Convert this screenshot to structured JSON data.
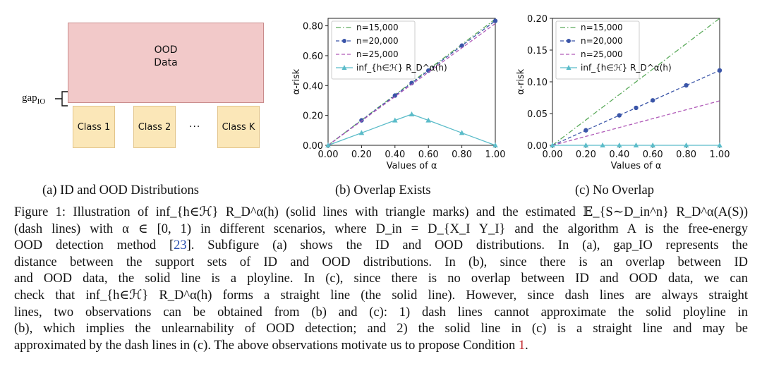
{
  "diagram": {
    "ood_line1": "OOD",
    "ood_line2": "Data",
    "gap_label": "gap",
    "gap_sub": "IO",
    "classes": [
      "Class 1",
      "Class 2",
      "Class K"
    ],
    "ellipsis": "···"
  },
  "subcaptions": [
    "(a) ID and OOD Distributions",
    "(b) Overlap Exists",
    "(c) No Overlap"
  ],
  "caption_lines": [
    "Figure 1: Illustration of inf_{h∈ℋ} R_D^α(h) (solid lines with triangle marks) and the estimated 𝔼_{S∼D_in^n} R_D^α(A(S))",
    "(dash lines) with α ∈ [0, 1) in different scenarios, where D_in = D_{X_I Y_I} and the algorithm A is the free-energy",
    "OOD detection method [23]. Subfigure (a) shows the ID and OOD distributions. In (a), gap_IO represents the",
    "distance between the support sets of ID and OOD distributions. In (b), since there is an overlap between ID",
    "and OOD data, the solid line is a ployline. In (c), since there is no overlap between ID and OOD data, we can",
    "check that inf_{h∈ℋ} R_D^α(h) forms a straight line (the solid line). However, since dash lines are always straight",
    "lines, two observations can be obtained from (b) and (c): 1) dash lines cannot approximate the solid ployline in",
    "(b), which implies the unlearnability of OOD detection; and 2) the solid line in (c) is a straight line and may be",
    "approximated by the dash lines in (c). The above observations motivate us to propose Condition 1."
  ],
  "caption_ref": "23",
  "caption_cond": "1",
  "colors": {
    "n15000": "#5cab5c",
    "n20000": "#3a55a8",
    "n25000": "#b05ab8",
    "inf": "#5bbcc9"
  },
  "chart_data": [
    {
      "type": "line",
      "xlabel": "Values of α",
      "ylabel": "α-risk",
      "xlim": [
        0,
        1
      ],
      "ylim": [
        0,
        0.85
      ],
      "xticks": [
        "0.00",
        "0.20",
        "0.40",
        "0.60",
        "0.80",
        "1.00"
      ],
      "yticks": [
        "0.00",
        "0.20",
        "0.40",
        "0.60",
        "0.80"
      ],
      "legend": "top-left",
      "series": [
        {
          "name": "n=15,000",
          "style": "dashdot",
          "x": [
            0,
            1
          ],
          "y": [
            0,
            0.845
          ]
        },
        {
          "name": "n=20,000",
          "style": "dashed-markers",
          "x": [
            0,
            0.2,
            0.4,
            0.5,
            0.6,
            0.8,
            1.0
          ],
          "y": [
            0,
            0.167,
            0.333,
            0.417,
            0.5,
            0.667,
            0.833
          ]
        },
        {
          "name": "n=25,000",
          "style": "dashed",
          "x": [
            0,
            1
          ],
          "y": [
            0,
            0.815
          ]
        },
        {
          "name": "inf_{h∈ℋ} R_D^α(h)",
          "style": "solid-triangles",
          "x": [
            0,
            0.2,
            0.4,
            0.5,
            0.6,
            0.8,
            1.0
          ],
          "y": [
            0,
            0.083,
            0.167,
            0.208,
            0.167,
            0.083,
            0
          ]
        }
      ]
    },
    {
      "type": "line",
      "xlabel": "Values of α",
      "ylabel": "α-risk",
      "xlim": [
        0,
        1
      ],
      "ylim": [
        0,
        0.2
      ],
      "xticks": [
        "0.00",
        "0.20",
        "0.40",
        "0.60",
        "0.80",
        "1.00"
      ],
      "yticks": [
        "0.00",
        "0.05",
        "0.10",
        "0.15",
        "0.20"
      ],
      "legend": "top-left",
      "series": [
        {
          "name": "n=15,000",
          "style": "dashdot",
          "x": [
            0,
            1
          ],
          "y": [
            0,
            0.2
          ]
        },
        {
          "name": "n=20,000",
          "style": "dashed-markers",
          "x": [
            0,
            0.2,
            0.4,
            0.5,
            0.6,
            0.8,
            1.0
          ],
          "y": [
            0,
            0.0236,
            0.0472,
            0.059,
            0.0708,
            0.0944,
            0.118
          ]
        },
        {
          "name": "n=25,000",
          "style": "dashed",
          "x": [
            0,
            1
          ],
          "y": [
            0,
            0.07
          ]
        },
        {
          "name": "inf_{h∈ℋ} R_D^α(h)",
          "style": "solid-triangles",
          "x": [
            0,
            0.2,
            0.3,
            0.4,
            0.5,
            0.6,
            0.8,
            1.0
          ],
          "y": [
            0,
            0,
            0,
            0,
            0,
            0,
            0,
            0
          ]
        }
      ]
    }
  ]
}
